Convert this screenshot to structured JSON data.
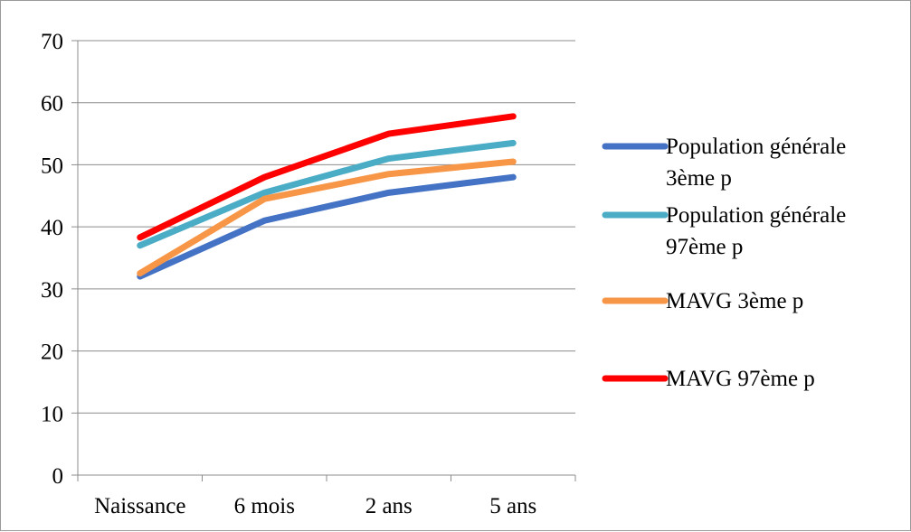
{
  "chart_data": {
    "type": "line",
    "categories": [
      "Naissance",
      "6 mois",
      "2 ans",
      "5 ans"
    ],
    "ylim": [
      0,
      70
    ],
    "yticks": [
      0,
      10,
      20,
      30,
      40,
      50,
      60,
      70
    ],
    "grid": "horizontal",
    "legend_position": "right",
    "series": [
      {
        "name": "Population générale 3ème p",
        "legend_lines": [
          "Population générale",
          "3ème p"
        ],
        "color": "#4472C4",
        "values": [
          32,
          41,
          45.5,
          48
        ]
      },
      {
        "name": "Population générale 97ème p",
        "legend_lines": [
          "Population générale",
          "97ème p"
        ],
        "color": "#4BACC6",
        "values": [
          37,
          45.5,
          51,
          53.5
        ]
      },
      {
        "name": "MAVG 3ème p",
        "legend_lines": [
          "MAVG 3ème p"
        ],
        "color": "#F79646",
        "values": [
          32.5,
          44.5,
          48.5,
          50.5
        ]
      },
      {
        "name": "MAVG 97ème p",
        "legend_lines": [
          "MAVG 97ème p"
        ],
        "color": "#FF0000",
        "values": [
          38.3,
          48,
          55,
          57.8
        ]
      }
    ]
  }
}
